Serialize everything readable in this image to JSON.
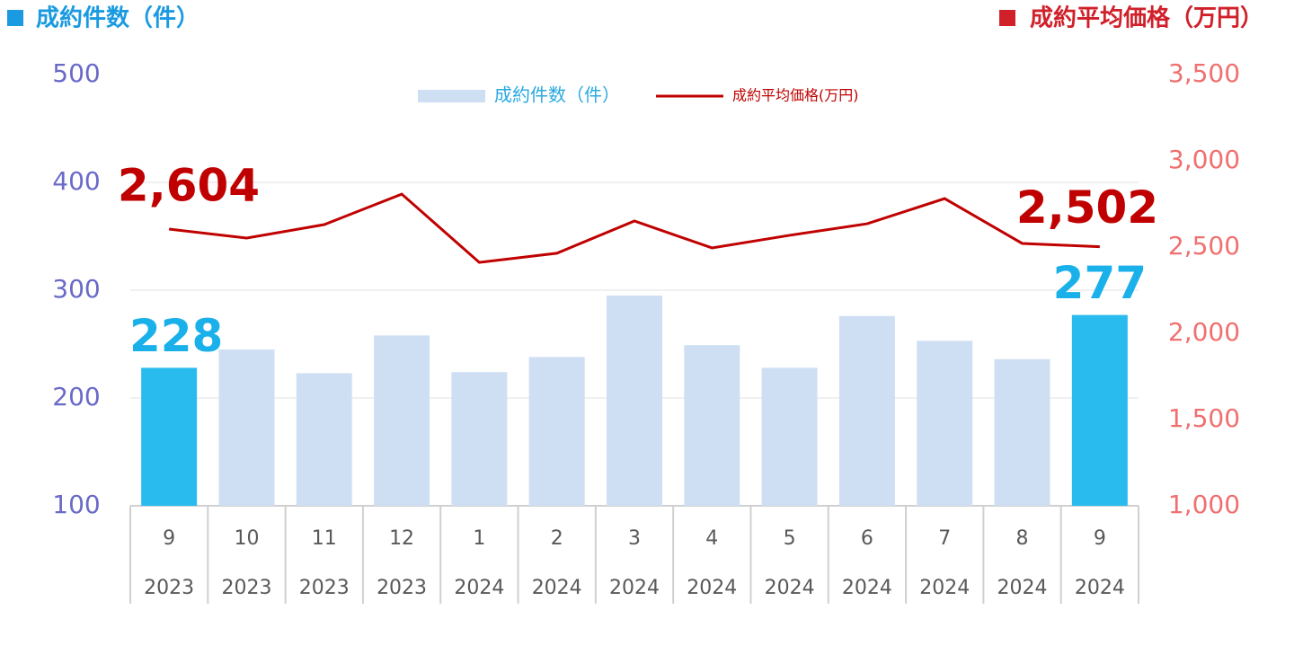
{
  "chart_data": {
    "type": "bar_line",
    "y_title": "成約件数（件）",
    "y2_title": "成約平均価格（万円）",
    "categories": [
      "9",
      "10",
      "11",
      "12",
      "1",
      "2",
      "3",
      "4",
      "5",
      "6",
      "7",
      "8",
      "9"
    ],
    "years": [
      "2023",
      "2023",
      "2023",
      "2023",
      "2024",
      "2024",
      "2024",
      "2024",
      "2024",
      "2024",
      "2024",
      "2024",
      "2024"
    ],
    "series": [
      {
        "name": "成約件数（件）",
        "type": "bar",
        "axis": "y",
        "color": "#cfdff3",
        "colors": [
          "#29bbee",
          "#cfdff3",
          "#cfdff3",
          "#cfdff3",
          "#cfdff3",
          "#cfdff3",
          "#cfdff3",
          "#cfdff3",
          "#cfdff3",
          "#cfdff3",
          "#cfdff3",
          "#cfdff3",
          "#29bbee"
        ],
        "label_color": "#1ab0ea",
        "values": [
          228,
          245,
          223,
          258,
          224,
          238,
          295,
          249,
          228,
          276,
          253,
          236,
          277
        ],
        "value_labels": [
          "228",
          null,
          null,
          null,
          null,
          null,
          null,
          null,
          null,
          null,
          null,
          null,
          "277"
        ]
      },
      {
        "name": "成約平均価格(万円)",
        "type": "line",
        "axis": "y2",
        "color": "#c00000",
        "label_color": "#c00000",
        "values": [
          2604,
          2552,
          2630,
          2807,
          2411,
          2464,
          2651,
          2495,
          2568,
          2635,
          2781,
          2521,
          2502
        ],
        "value_labels": [
          "2,604",
          null,
          null,
          null,
          null,
          null,
          null,
          null,
          null,
          null,
          null,
          null,
          "2,502"
        ]
      }
    ],
    "ylim": [
      100,
      500
    ],
    "yticks": [
      100,
      200,
      300,
      400,
      500
    ],
    "y2lim": [
      1000,
      3500
    ],
    "y2ticks": [
      {
        "value": 1000,
        "label": "1,000"
      },
      {
        "value": 1500,
        "label": "1,500"
      },
      {
        "value": 2000,
        "label": "2,000"
      },
      {
        "value": 2500,
        "label": "2,500"
      },
      {
        "value": 3000,
        "label": "3,000"
      },
      {
        "value": 3500,
        "label": "3,500"
      }
    ],
    "grid": true,
    "legend": "top"
  }
}
